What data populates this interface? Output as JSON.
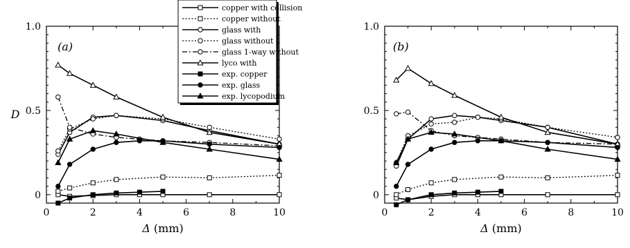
{
  "chart_data": [
    {
      "type": "line",
      "panel_label": "(a)",
      "xlabel_italic": "Δ",
      "xlabel_unit": " (mm)",
      "ylabel": "D",
      "xlim": [
        0,
        10
      ],
      "ylim": [
        -0.05,
        1.0
      ],
      "xticks": [
        0,
        2,
        4,
        6,
        8,
        10
      ],
      "yticks": [
        0,
        0.5,
        1.0
      ],
      "ytick_labels": [
        "0",
        "0.5",
        "1.0"
      ],
      "series": [
        {
          "name": "copper with collision",
          "style": "solid",
          "marker": "square-open",
          "x": [
            0.5,
            1,
            2,
            3,
            4,
            5,
            7,
            10
          ],
          "y": [
            0.0,
            -0.01,
            -0.005,
            0.0,
            0.0,
            0.0,
            0.0,
            0.0
          ]
        },
        {
          "name": "copper without",
          "style": "dotted",
          "marker": "square-open",
          "x": [
            0.5,
            1,
            2,
            3,
            5,
            7,
            10
          ],
          "y": [
            0.02,
            0.04,
            0.07,
            0.09,
            0.105,
            0.1,
            0.115
          ]
        },
        {
          "name": "glass with",
          "style": "solid",
          "marker": "circle-open",
          "x": [
            0.5,
            1,
            2,
            3,
            5,
            7,
            10
          ],
          "y": [
            0.24,
            0.37,
            0.46,
            0.47,
            0.44,
            0.38,
            0.3
          ]
        },
        {
          "name": "glass without",
          "style": "dotted",
          "marker": "circle-open",
          "x": [
            0.5,
            1,
            2,
            3,
            5,
            7,
            10
          ],
          "y": [
            0.26,
            0.39,
            0.45,
            0.47,
            0.45,
            0.4,
            0.33
          ]
        },
        {
          "name": "glass 1-way without",
          "style": "dashdot",
          "marker": "circle-open",
          "x": [
            0.5,
            1,
            2,
            3,
            4,
            5,
            7,
            10
          ],
          "y": [
            0.58,
            0.4,
            0.36,
            0.34,
            0.33,
            0.32,
            0.31,
            0.29
          ]
        },
        {
          "name": "lyco with",
          "style": "solid",
          "marker": "triangle-open",
          "x": [
            0.5,
            1,
            2,
            3,
            5,
            7,
            10
          ],
          "y": [
            0.77,
            0.72,
            0.65,
            0.58,
            0.46,
            0.37,
            0.3
          ]
        },
        {
          "name": "exp. copper",
          "style": "solid",
          "marker": "square-filled",
          "x": [
            0.5,
            1,
            2,
            3,
            4,
            5
          ],
          "y": [
            -0.05,
            -0.02,
            0.0,
            0.01,
            0.015,
            0.02
          ]
        },
        {
          "name": "exp. glass",
          "style": "solid",
          "marker": "circle-filled",
          "x": [
            0.5,
            1,
            2,
            3,
            4,
            5,
            7,
            10
          ],
          "y": [
            0.05,
            0.18,
            0.27,
            0.31,
            0.32,
            0.32,
            0.3,
            0.28
          ]
        },
        {
          "name": "exp. lycopodium",
          "style": "solid",
          "marker": "triangle-filled",
          "x": [
            0.5,
            1,
            2,
            3,
            5,
            7,
            10
          ],
          "y": [
            0.19,
            0.33,
            0.38,
            0.36,
            0.31,
            0.27,
            0.21
          ]
        }
      ]
    },
    {
      "type": "line",
      "panel_label": "(b)",
      "xlabel_italic": "Δ",
      "xlabel_unit": " (mm)",
      "ylabel": "",
      "xlim": [
        0,
        10
      ],
      "ylim": [
        -0.05,
        1.0
      ],
      "xticks": [
        0,
        2,
        4,
        6,
        8,
        10
      ],
      "yticks": [
        0,
        0.5,
        1.0
      ],
      "ytick_labels": [
        "0",
        "0.5",
        "1.0"
      ],
      "series": [
        {
          "name": "copper with collision",
          "style": "solid",
          "marker": "square-open",
          "x": [
            0.5,
            1,
            2,
            3,
            4,
            5,
            7,
            10
          ],
          "y": [
            -0.02,
            -0.03,
            -0.01,
            0.0,
            0.0,
            0.0,
            0.0,
            0.0
          ]
        },
        {
          "name": "copper without",
          "style": "dotted",
          "marker": "square-open",
          "x": [
            0.5,
            1,
            2,
            3,
            5,
            7,
            10
          ],
          "y": [
            0.0,
            0.03,
            0.07,
            0.09,
            0.105,
            0.1,
            0.115
          ]
        },
        {
          "name": "glass with",
          "style": "solid",
          "marker": "circle-open",
          "x": [
            0.5,
            1,
            2,
            3,
            4,
            5,
            7,
            10
          ],
          "y": [
            0.17,
            0.33,
            0.45,
            0.47,
            0.46,
            0.44,
            0.4,
            0.3
          ]
        },
        {
          "name": "glass without",
          "style": "dotted",
          "marker": "circle-open",
          "x": [
            0.5,
            1,
            2,
            3,
            4,
            5,
            7,
            10
          ],
          "y": [
            0.19,
            0.35,
            0.42,
            0.43,
            0.46,
            0.45,
            0.4,
            0.34
          ]
        },
        {
          "name": "glass 1-way without",
          "style": "dashdot",
          "marker": "circle-open",
          "x": [
            0.5,
            1,
            2,
            3,
            4,
            5,
            7,
            10
          ],
          "y": [
            0.48,
            0.49,
            0.38,
            0.35,
            0.34,
            0.33,
            0.31,
            0.3
          ]
        },
        {
          "name": "lyco with",
          "style": "solid",
          "marker": "triangle-open",
          "x": [
            0.5,
            1,
            2,
            3,
            5,
            7,
            10
          ],
          "y": [
            0.68,
            0.75,
            0.66,
            0.59,
            0.46,
            0.37,
            0.3
          ]
        },
        {
          "name": "exp. copper",
          "style": "solid",
          "marker": "square-filled",
          "x": [
            0.5,
            1,
            2,
            3,
            4,
            5
          ],
          "y": [
            -0.06,
            -0.03,
            0.0,
            0.01,
            0.015,
            0.02
          ]
        },
        {
          "name": "exp. glass",
          "style": "solid",
          "marker": "circle-filled",
          "x": [
            0.5,
            1,
            2,
            3,
            4,
            5,
            7,
            10
          ],
          "y": [
            0.05,
            0.18,
            0.27,
            0.31,
            0.32,
            0.32,
            0.31,
            0.28
          ]
        },
        {
          "name": "exp. lycopodium",
          "style": "solid",
          "marker": "triangle-filled",
          "x": [
            0.5,
            1,
            2,
            3,
            5,
            7,
            10
          ],
          "y": [
            0.19,
            0.33,
            0.37,
            0.36,
            0.32,
            0.27,
            0.21
          ]
        }
      ]
    }
  ],
  "legend": {
    "placement": "top-center, overlapping panel (a)",
    "entries": [
      "copper with collision",
      "copper without",
      "glass with",
      "glass without",
      "glass 1-way without",
      "lyco with",
      "exp. copper",
      "exp. glass",
      "exp. lycopodium"
    ]
  }
}
